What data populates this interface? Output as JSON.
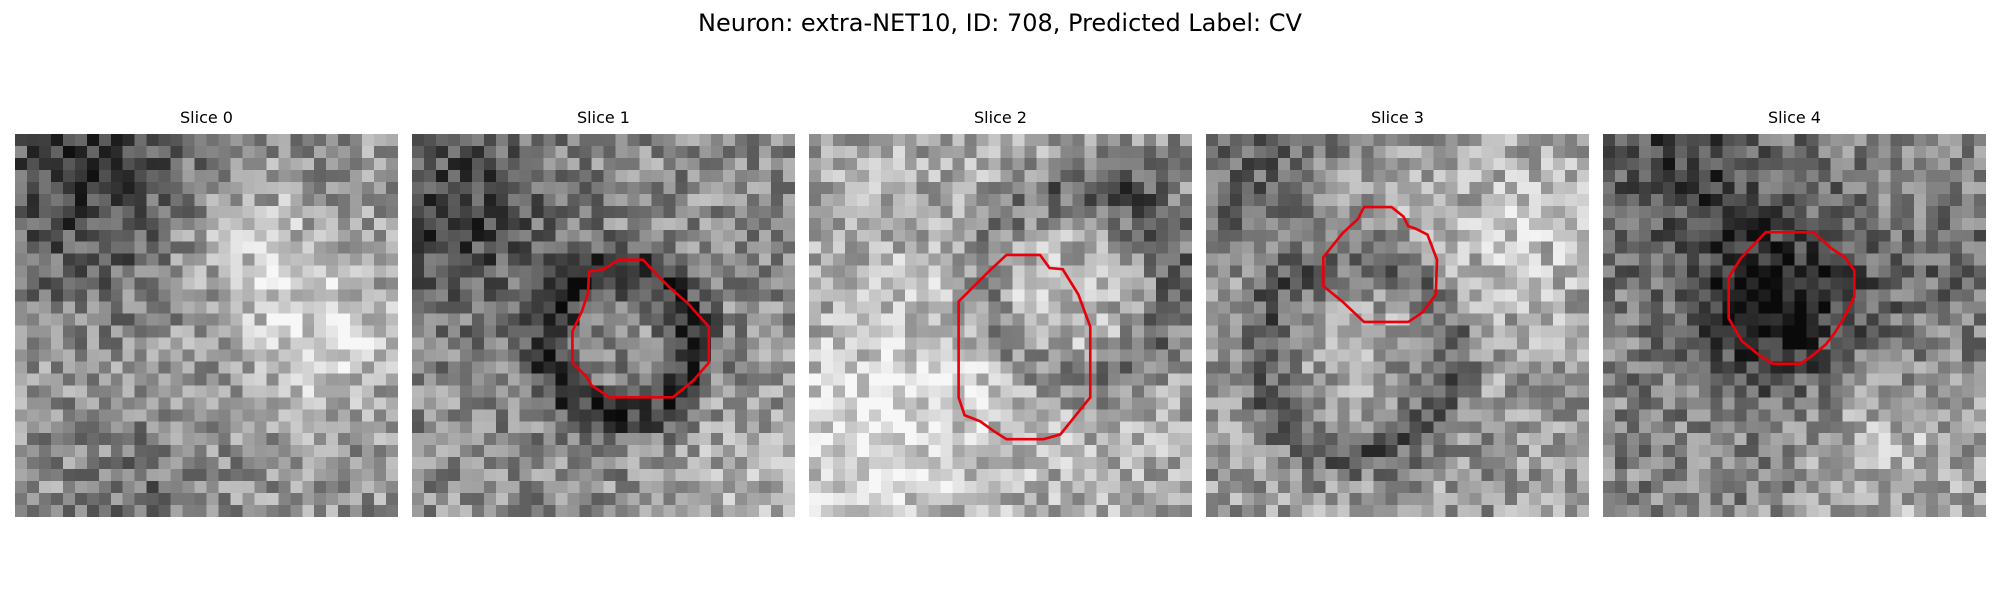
{
  "figure": {
    "title": "Neuron: extra-NET10, ID: 708, Predicted Label: CV"
  },
  "panels": [
    {
      "title": "Slice 0",
      "has_contour": false
    },
    {
      "title": "Slice 1",
      "has_contour": true
    },
    {
      "title": "Slice 2",
      "has_contour": true
    },
    {
      "title": "Slice 3",
      "has_contour": true
    },
    {
      "title": "Slice 4",
      "has_contour": true
    }
  ],
  "colors": {
    "contour": "#e8000b",
    "background": "#ffffff"
  }
}
